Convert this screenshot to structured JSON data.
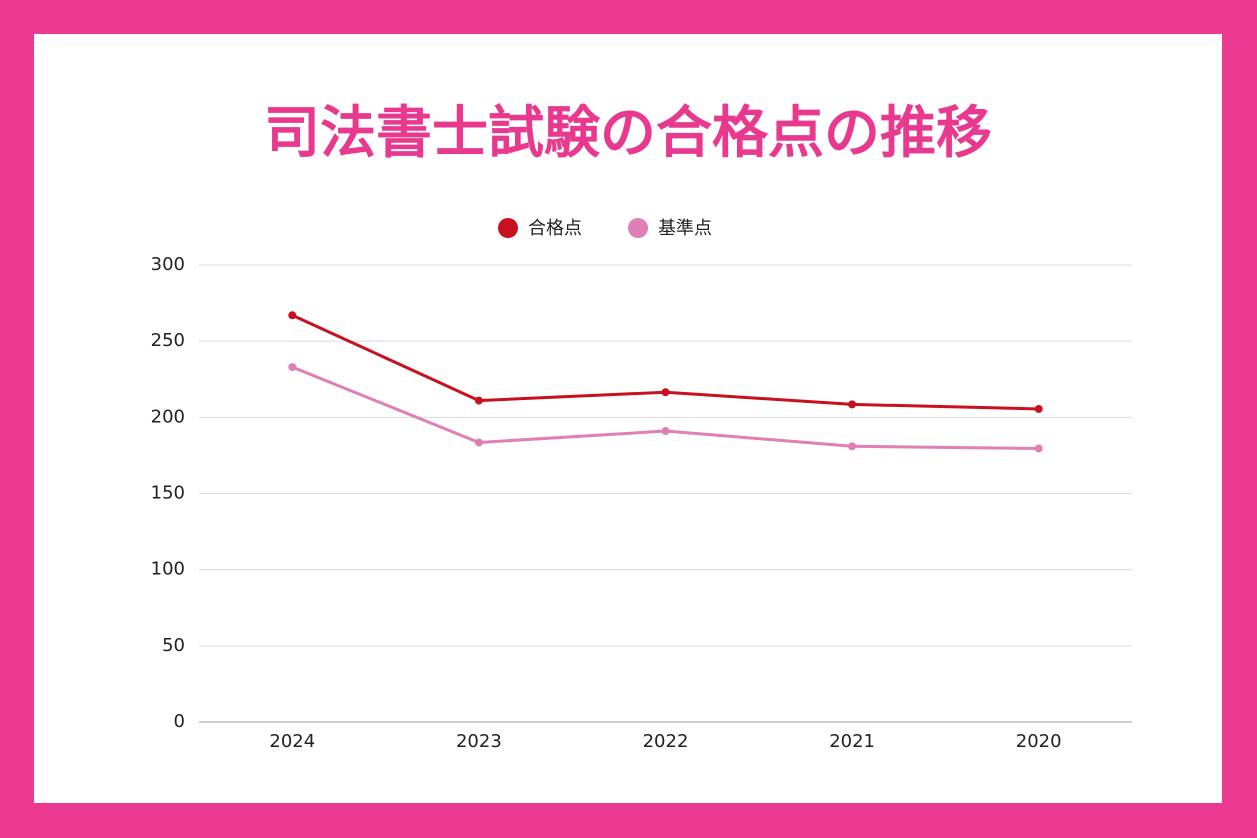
{
  "chart_data": {
    "type": "line",
    "title": "司法書士試験の合格点の推移",
    "categories": [
      "2024",
      "2023",
      "2022",
      "2021",
      "2020"
    ],
    "series": [
      {
        "name": "合格点",
        "color": "#c8101e",
        "values": [
          267,
          211,
          216.5,
          208.5,
          205.5
        ]
      },
      {
        "name": "基準点",
        "color": "#e07fb5",
        "values": [
          233,
          183.5,
          191,
          181,
          179.5
        ]
      }
    ],
    "ylim": [
      0,
      300
    ],
    "yticks": [
      0,
      50,
      100,
      150,
      200,
      250,
      300
    ],
    "grid": true,
    "legend": "top"
  }
}
